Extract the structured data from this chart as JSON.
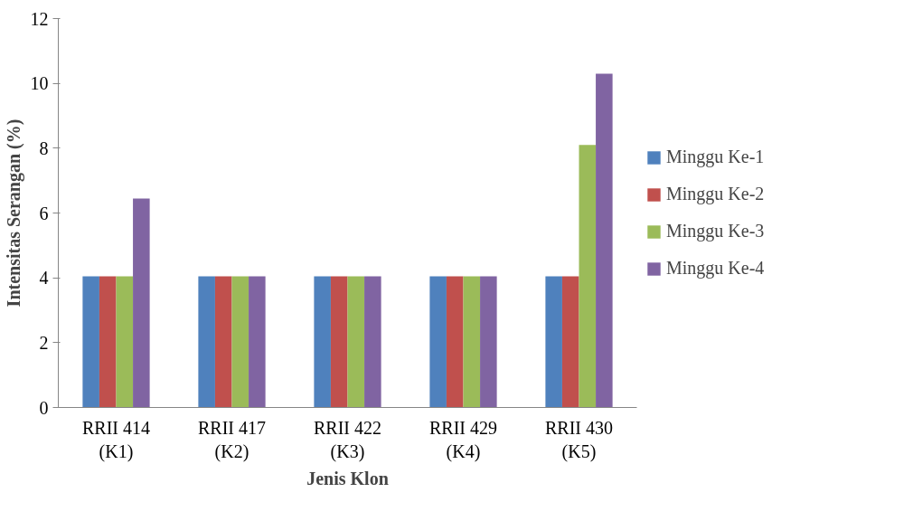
{
  "chart_data": {
    "type": "bar",
    "xlabel": "Jenis Klon",
    "ylabel": "Intensitas Serangan (%)",
    "categories": [
      "RRII 414\n(K1)",
      "RRII 417\n(K2)",
      "RRII 422\n(K3)",
      "RRII 429\n(K4)",
      "RRII 430\n(K5)"
    ],
    "series": [
      {
        "name": "Minggu Ke-1",
        "color": "#4f81bd",
        "values": [
          4.05,
          4.05,
          4.05,
          4.05,
          4.05
        ]
      },
      {
        "name": "Minggu Ke-2",
        "color": "#c0504d",
        "values": [
          4.05,
          4.05,
          4.05,
          4.05,
          4.05
        ]
      },
      {
        "name": "Minggu Ke-3",
        "color": "#9bbb59",
        "values": [
          4.05,
          4.05,
          4.05,
          4.05,
          8.1
        ]
      },
      {
        "name": "Minggu Ke-4",
        "color": "#8064a2",
        "values": [
          6.45,
          4.05,
          4.05,
          4.05,
          10.3
        ]
      }
    ],
    "ylim": [
      0,
      12
    ],
    "yticks": [
      0,
      2,
      4,
      6,
      8,
      10,
      12
    ],
    "grid": false,
    "legend": "right"
  }
}
